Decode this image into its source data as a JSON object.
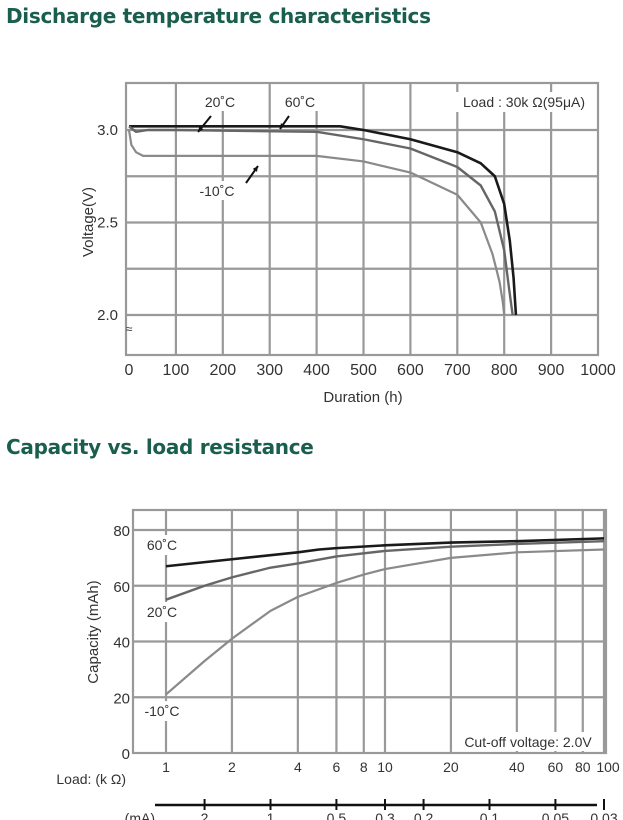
{
  "colors": {
    "title": "#1a5e4e",
    "grid": "#999999",
    "series_60": "#1a1a1a",
    "series_20": "#666666",
    "series_m10": "#8a8a8a"
  },
  "chart_data": [
    {
      "type": "line",
      "title": "Discharge temperature characteristics",
      "xlabel": "Duration (h)",
      "ylabel": "Voltage(V)",
      "xlim": [
        0,
        1000
      ],
      "ylim": [
        1.78,
        3.25
      ],
      "xticks": [
        "0",
        "100",
        "200",
        "300",
        "400",
        "500",
        "600",
        "700",
        "800",
        "900",
        "1000"
      ],
      "yticks": [
        "3.0",
        "2.5",
        "2.0"
      ],
      "axis_break": "≈",
      "grid": true,
      "annotation": "Load : 30k Ω(95μA)",
      "series": [
        {
          "name": "60˚C",
          "x": [
            0,
            100,
            300,
            450,
            500,
            600,
            700,
            750,
            780,
            800,
            812,
            820,
            825
          ],
          "y": [
            3.02,
            3.02,
            3.02,
            3.02,
            3.0,
            2.95,
            2.88,
            2.82,
            2.75,
            2.6,
            2.4,
            2.2,
            2.0
          ]
        },
        {
          "name": "20˚C",
          "x": [
            0,
            15,
            40,
            100,
            400,
            500,
            600,
            700,
            750,
            780,
            800,
            810,
            818
          ],
          "y": [
            3.02,
            2.99,
            3.0,
            3.0,
            2.99,
            2.95,
            2.9,
            2.8,
            2.7,
            2.56,
            2.35,
            2.15,
            2.0
          ]
        },
        {
          "name": "-10˚C",
          "x": [
            0,
            5,
            15,
            30,
            400,
            500,
            600,
            700,
            750,
            775,
            790,
            797,
            800
          ],
          "y": [
            3.0,
            2.92,
            2.88,
            2.86,
            2.86,
            2.83,
            2.77,
            2.65,
            2.5,
            2.33,
            2.18,
            2.07,
            2.0
          ]
        }
      ]
    },
    {
      "type": "line",
      "title": "Capacity vs. load resistance",
      "xlabel": "Load: (k Ω)",
      "x2label": "(mA)",
      "ylabel": "Capacity (mAh)",
      "xscale": "log",
      "xlim": [
        1,
        100
      ],
      "ylim": [
        0,
        85
      ],
      "xticks": [
        "1",
        "2",
        "4",
        "6",
        "8",
        "10",
        "20",
        "40",
        "60",
        "80",
        "100"
      ],
      "x2ticks": [
        "2",
        "1",
        "0.5",
        "0.3",
        "0.2",
        "0.1",
        "0.05",
        "0.03"
      ],
      "yticks": [
        "0",
        "20",
        "40",
        "60",
        "80"
      ],
      "grid": true,
      "annotation": "Cut-off voltage: 2.0V",
      "series": [
        {
          "name": "60˚C",
          "x": [
            1,
            2,
            4,
            5,
            6,
            10,
            20,
            40,
            100
          ],
          "y": [
            67,
            69.5,
            72,
            73,
            73.5,
            74.5,
            75.5,
            76,
            77
          ]
        },
        {
          "name": "20˚C",
          "x": [
            1,
            1.5,
            2,
            3,
            4,
            6,
            10,
            20,
            40,
            100
          ],
          "y": [
            55,
            60,
            63,
            66.5,
            68,
            70.5,
            72.5,
            74,
            75,
            76
          ]
        },
        {
          "name": "-10˚C",
          "x": [
            1,
            1.5,
            2,
            3,
            4,
            6,
            8,
            10,
            20,
            40,
            100
          ],
          "y": [
            21,
            33,
            41,
            51,
            56,
            61,
            64,
            66,
            70,
            72,
            73
          ]
        }
      ]
    }
  ]
}
